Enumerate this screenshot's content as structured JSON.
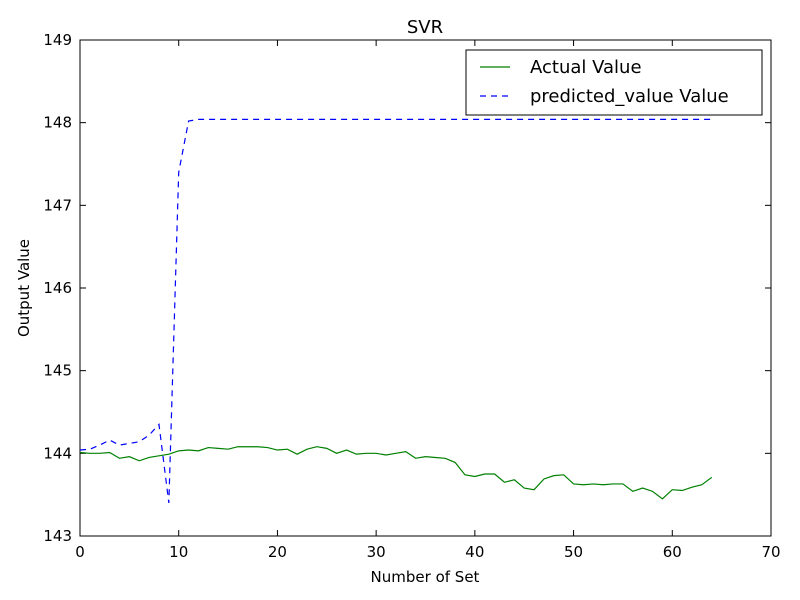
{
  "chart_data": {
    "type": "line",
    "title": "SVR",
    "xlabel": "Number of Set",
    "ylabel": "Output Value",
    "xlim": [
      0,
      70
    ],
    "ylim": [
      143,
      149
    ],
    "xticks": [
      "0",
      "10",
      "20",
      "30",
      "40",
      "50",
      "60",
      "70"
    ],
    "yticks": [
      "143",
      "144",
      "145",
      "146",
      "147",
      "148",
      "149"
    ],
    "grid": false,
    "legend_position": "top-right",
    "series": [
      {
        "name": "Actual Value",
        "color": "#008000",
        "style": "solid",
        "x": [
          0,
          1,
          2,
          3,
          4,
          5,
          6,
          7,
          8,
          9,
          10,
          11,
          12,
          13,
          14,
          15,
          16,
          17,
          18,
          19,
          20,
          21,
          22,
          23,
          24,
          25,
          26,
          27,
          28,
          29,
          30,
          31,
          32,
          33,
          34,
          35,
          36,
          37,
          38,
          39,
          40,
          41,
          42,
          43,
          44,
          45,
          46,
          47,
          48,
          49,
          50,
          51,
          52,
          53,
          54,
          55,
          56,
          57,
          58,
          59,
          60,
          61,
          62,
          63,
          64
        ],
        "values": [
          144.01,
          144.0,
          144.0,
          144.01,
          143.94,
          143.96,
          143.91,
          143.95,
          143.97,
          143.99,
          144.03,
          144.04,
          144.03,
          144.07,
          144.06,
          144.05,
          144.08,
          144.08,
          144.08,
          144.07,
          144.04,
          144.05,
          143.99,
          144.05,
          144.08,
          144.06,
          144.0,
          144.04,
          143.99,
          144.0,
          144.0,
          143.98,
          144.0,
          144.02,
          143.94,
          143.96,
          143.95,
          143.94,
          143.89,
          143.74,
          143.72,
          143.75,
          143.75,
          143.65,
          143.68,
          143.58,
          143.56,
          143.69,
          143.73,
          143.74,
          143.63,
          143.62,
          143.63,
          143.62,
          143.63,
          143.63,
          143.54,
          143.58,
          143.54,
          143.45,
          143.56,
          143.55,
          143.59,
          143.62,
          143.71
        ]
      },
      {
        "name": "predicted_value Value",
        "color": "#0000ff",
        "style": "dashed",
        "x": [
          0,
          1,
          2,
          3,
          4,
          5,
          6,
          7,
          8,
          9,
          10,
          11,
          12,
          13,
          14,
          15,
          16,
          17,
          18,
          19,
          20,
          21,
          22,
          23,
          24,
          25,
          26,
          27,
          28,
          29,
          30,
          31,
          32,
          33,
          34,
          35,
          36,
          37,
          38,
          39,
          40,
          41,
          42,
          43,
          44,
          45,
          46,
          47,
          48,
          49,
          50,
          51,
          52,
          53,
          54,
          55,
          56,
          57,
          58,
          59,
          60,
          61,
          62,
          63,
          64
        ],
        "values": [
          144.04,
          144.05,
          144.1,
          144.16,
          144.1,
          144.12,
          144.14,
          144.22,
          144.35,
          143.4,
          147.4,
          148.02,
          148.04,
          148.04,
          148.04,
          148.04,
          148.04,
          148.04,
          148.04,
          148.04,
          148.04,
          148.04,
          148.04,
          148.04,
          148.04,
          148.04,
          148.04,
          148.04,
          148.04,
          148.04,
          148.04,
          148.04,
          148.04,
          148.04,
          148.04,
          148.04,
          148.04,
          148.04,
          148.04,
          148.04,
          148.04,
          148.04,
          148.04,
          148.04,
          148.04,
          148.04,
          148.04,
          148.04,
          148.04,
          148.04,
          148.04,
          148.04,
          148.04,
          148.04,
          148.04,
          148.04,
          148.04,
          148.04,
          148.04,
          148.04,
          148.04,
          148.04,
          148.04,
          148.04,
          148.04
        ]
      }
    ]
  }
}
